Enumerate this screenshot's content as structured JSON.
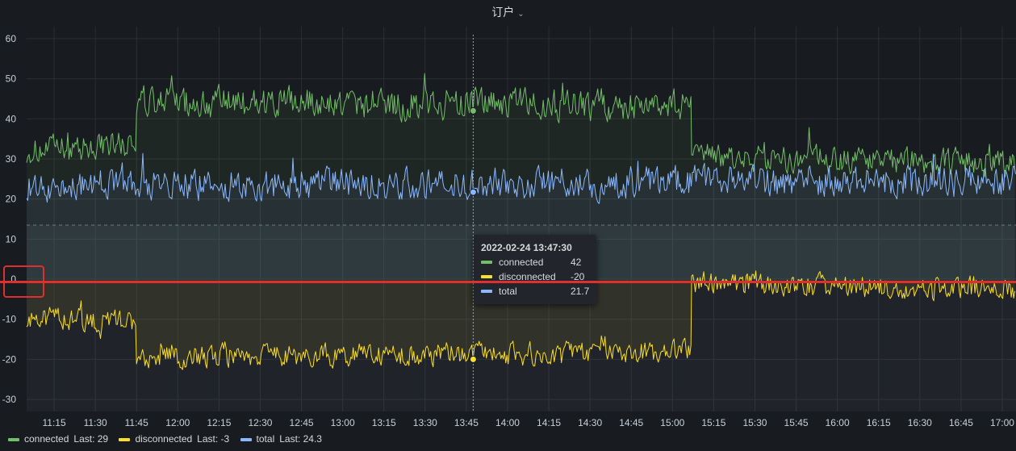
{
  "panel": {
    "title": "订户",
    "chevron": "⌄"
  },
  "tooltip": {
    "time": "2022-02-24 13:47:30",
    "rows": [
      {
        "name": "connected",
        "value": "42"
      },
      {
        "name": "disconnected",
        "value": "-20"
      },
      {
        "name": "total",
        "value": "21.7"
      }
    ]
  },
  "legend": [
    {
      "name": "connected",
      "last_label": "Last:",
      "last": "29"
    },
    {
      "name": "disconnected",
      "last_label": "Last:",
      "last": "-3"
    },
    {
      "name": "total",
      "last_label": "Last:",
      "last": "24.3"
    }
  ],
  "chart_data": {
    "type": "line",
    "title": "订户",
    "xlabel": "",
    "ylabel": "",
    "ylim": [
      -33,
      63
    ],
    "yticks": [
      60,
      50,
      40,
      30,
      20,
      10,
      0,
      -10,
      -20,
      -30
    ],
    "x_start": "11:05",
    "x_end": "17:05",
    "xticks": [
      "11:15",
      "11:30",
      "11:45",
      "12:00",
      "12:15",
      "12:30",
      "12:45",
      "13:00",
      "13:15",
      "13:30",
      "13:45",
      "14:00",
      "14:15",
      "14:30",
      "14:45",
      "15:00",
      "15:15",
      "15:30",
      "15:45",
      "16:00",
      "16:15",
      "16:30",
      "16:45",
      "17:00"
    ],
    "threshold": 13.5,
    "hover_time": "13:47:30",
    "series": [
      {
        "name": "connected",
        "color": "#73bf69",
        "segments": [
          {
            "from": "11:05",
            "to": "11:45",
            "start": 31,
            "end": 35,
            "mean": 33,
            "noise": 3
          },
          {
            "from": "11:45",
            "to": "15:07",
            "start": 44,
            "end": 43,
            "mean": 44,
            "noise": 3.5
          },
          {
            "from": "15:07",
            "to": "17:05",
            "start": 31,
            "end": 28,
            "mean": 30,
            "noise": 3
          }
        ],
        "points": [
          {
            "time": "13:47:30",
            "value": 42
          }
        ],
        "last": 29
      },
      {
        "name": "disconnected",
        "color": "#fade2a",
        "segments": [
          {
            "from": "11:05",
            "to": "11:45",
            "start": -9,
            "end": -12,
            "mean": -10,
            "noise": 2.5
          },
          {
            "from": "11:45",
            "to": "15:07",
            "start": -20,
            "end": -18,
            "mean": -18.5,
            "noise": 2.5
          },
          {
            "from": "15:07",
            "to": "17:05",
            "start": 0,
            "end": -3,
            "mean": -2,
            "noise": 2.5
          }
        ],
        "points": [
          {
            "time": "13:47:30",
            "value": -20
          }
        ],
        "last": -3
      },
      {
        "name": "total",
        "color": "#8ab8ff",
        "segments": [
          {
            "from": "11:05",
            "to": "17:05",
            "start": 22,
            "end": 24,
            "mean": 25,
            "noise": 3.5
          }
        ],
        "points": [
          {
            "time": "13:47:30",
            "value": 21.7
          }
        ],
        "last": 24.3
      }
    ]
  }
}
